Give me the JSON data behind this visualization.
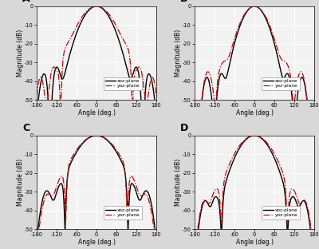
{
  "panels": [
    "A",
    "B",
    "C",
    "D"
  ],
  "xlabel": "Angle (deg.)",
  "ylabel": "Magnitude (dB)",
  "xlim": [
    -180,
    180
  ],
  "ylim": [
    -50,
    0
  ],
  "xticks": [
    -180,
    -120,
    -60,
    0,
    60,
    120,
    180
  ],
  "yticks": [
    0,
    -10,
    -20,
    -30,
    -40,
    -50
  ],
  "legend_xoz": "xoz-plane",
  "legend_yoz": "yoz-plane",
  "xoz_color": "#000000",
  "yoz_color": "#cc0000",
  "bg_color": "#f2f2f2",
  "grid_color": "#ffffff",
  "outer_bg": "#d8d8d8"
}
